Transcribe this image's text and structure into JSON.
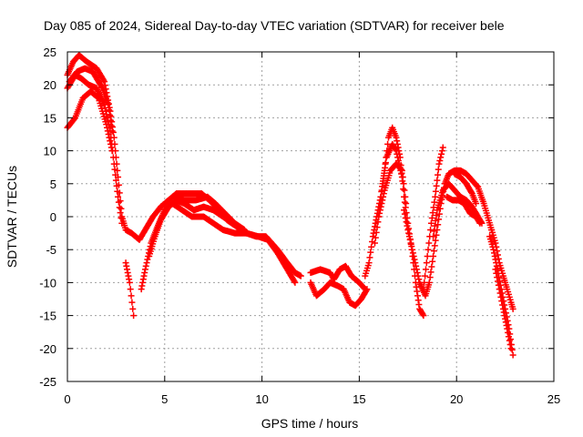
{
  "chart_data": {
    "type": "scatter",
    "title": "Day 085 of 2024, Sidereal Day-to-day VTEC variation (SDTVAR) for receiver bele",
    "xlabel": "GPS time / hours",
    "ylabel": "SDTVAR / TECUs",
    "xlim": [
      0,
      25
    ],
    "ylim": [
      -25,
      25
    ],
    "xticks": [
      0,
      5,
      10,
      15,
      20,
      25
    ],
    "yticks": [
      -25,
      -20,
      -15,
      -10,
      -5,
      0,
      5,
      10,
      15,
      20,
      25
    ],
    "grid": true,
    "marker": "+",
    "series": [
      {
        "name": "SDTVAR",
        "color": "#ff0000",
        "tracks": [
          [
            [
              0.0,
              21.5
            ],
            [
              0.3,
              23.5
            ],
            [
              0.6,
              24.5
            ],
            [
              1.0,
              23.5
            ],
            [
              1.5,
              22.5
            ],
            [
              1.9,
              20.5
            ],
            [
              2.2,
              16
            ],
            [
              2.4,
              12
            ],
            [
              2.6,
              6
            ],
            [
              2.8,
              0
            ],
            [
              3.0,
              -2
            ],
            [
              3.3,
              -2.5
            ],
            [
              3.7,
              -3.5
            ],
            [
              4.0,
              -2
            ],
            [
              4.4,
              0
            ],
            [
              4.8,
              1.5
            ],
            [
              5.2,
              2.5
            ],
            [
              5.6,
              3.5
            ],
            [
              6.0,
              3.5
            ],
            [
              6.4,
              3.5
            ],
            [
              6.9,
              3.5
            ],
            [
              7.3,
              2.5
            ],
            [
              7.8,
              1
            ],
            [
              8.2,
              -0.5
            ],
            [
              8.7,
              -1.5
            ],
            [
              9.2,
              -2.5
            ],
            [
              9.7,
              -3
            ],
            [
              10.2,
              -3
            ],
            [
              10.8,
              -5
            ],
            [
              11.3,
              -7
            ],
            [
              11.7,
              -8.5
            ],
            [
              12.0,
              -9
            ]
          ],
          [
            [
              0.0,
              19.5
            ],
            [
              0.4,
              21.5
            ],
            [
              0.7,
              21
            ],
            [
              1.1,
              20
            ],
            [
              1.5,
              19.5
            ],
            [
              1.9,
              17
            ],
            [
              2.2,
              13
            ],
            [
              2.4,
              8
            ],
            [
              2.6,
              3
            ],
            [
              2.8,
              -1
            ]
          ],
          [
            [
              0.0,
              13.5
            ],
            [
              0.4,
              15
            ],
            [
              0.8,
              18
            ],
            [
              1.2,
              19
            ],
            [
              1.6,
              18
            ],
            [
              2.0,
              14
            ],
            [
              2.3,
              10
            ]
          ],
          [
            [
              0.1,
              20.5
            ],
            [
              0.5,
              22
            ],
            [
              0.9,
              22.5
            ],
            [
              1.3,
              22
            ],
            [
              1.8,
              19.5
            ],
            [
              2.1,
              17
            ],
            [
              2.3,
              13
            ]
          ],
          [
            [
              3.0,
              -7
            ],
            [
              3.2,
              -10
            ],
            [
              3.4,
              -15
            ]
          ],
          [
            [
              3.8,
              -11
            ],
            [
              4.0,
              -8
            ],
            [
              4.3,
              -4
            ],
            [
              4.7,
              -1
            ],
            [
              5.0,
              1
            ],
            [
              5.4,
              2
            ],
            [
              5.9,
              1
            ],
            [
              6.4,
              0
            ],
            [
              7.0,
              0
            ],
            [
              7.5,
              -1
            ],
            [
              8.0,
              -2
            ],
            [
              8.6,
              -2.5
            ],
            [
              9.2,
              -2.5
            ],
            [
              9.8,
              -3
            ],
            [
              10.3,
              -3.5
            ],
            [
              10.8,
              -5.5
            ],
            [
              11.3,
              -8
            ],
            [
              11.7,
              -10
            ]
          ],
          [
            [
              4.2,
              -6
            ],
            [
              4.5,
              -3
            ],
            [
              4.8,
              -0.5
            ],
            [
              5.2,
              1.5
            ],
            [
              5.6,
              2.5
            ],
            [
              6.0,
              2
            ],
            [
              6.5,
              1
            ],
            [
              7.0,
              1.5
            ],
            [
              7.5,
              1
            ],
            [
              8.0,
              0
            ],
            [
              8.5,
              -1
            ],
            [
              9.0,
              -2
            ]
          ],
          [
            [
              5.5,
              3
            ],
            [
              6.0,
              2.5
            ],
            [
              6.6,
              2.5
            ],
            [
              7.2,
              3
            ],
            [
              7.6,
              2
            ],
            [
              8.1,
              0.5
            ],
            [
              8.6,
              -1
            ],
            [
              9.1,
              -2
            ]
          ],
          [
            [
              12.5,
              -8.5
            ],
            [
              13.0,
              -8
            ],
            [
              13.5,
              -8.5
            ],
            [
              13.7,
              -9.5
            ],
            [
              14.0,
              -8
            ],
            [
              14.3,
              -7.5
            ],
            [
              14.6,
              -9
            ],
            [
              15.0,
              -10
            ],
            [
              15.3,
              -11
            ]
          ],
          [
            [
              12.5,
              -10
            ],
            [
              12.8,
              -12
            ],
            [
              13.2,
              -11
            ],
            [
              13.5,
              -10
            ],
            [
              13.9,
              -10.5
            ],
            [
              14.2,
              -11
            ],
            [
              14.5,
              -13
            ],
            [
              14.8,
              -13.5
            ],
            [
              15.1,
              -12.5
            ],
            [
              15.4,
              -11
            ]
          ],
          [
            [
              15.3,
              -9
            ],
            [
              15.5,
              -7
            ],
            [
              15.7,
              -3
            ],
            [
              15.9,
              0
            ],
            [
              16.1,
              3
            ],
            [
              16.3,
              7
            ],
            [
              16.5,
              12
            ],
            [
              16.7,
              13.5
            ],
            [
              16.9,
              12
            ],
            [
              17.1,
              9
            ],
            [
              17.3,
              3
            ],
            [
              17.5,
              -1
            ],
            [
              17.7,
              -5
            ],
            [
              17.9,
              -10
            ],
            [
              18.1,
              -14
            ],
            [
              18.3,
              -15
            ]
          ],
          [
            [
              15.8,
              -4
            ],
            [
              16.0,
              0
            ],
            [
              16.2,
              5
            ],
            [
              16.4,
              9
            ],
            [
              16.7,
              11
            ],
            [
              16.9,
              10
            ],
            [
              17.2,
              6
            ]
          ],
          [
            [
              16.0,
              0
            ],
            [
              16.3,
              4
            ],
            [
              16.6,
              7
            ],
            [
              16.9,
              8
            ],
            [
              17.2,
              7
            ],
            [
              17.4,
              2
            ]
          ],
          [
            [
              17.3,
              1
            ],
            [
              17.5,
              -2
            ],
            [
              17.8,
              -6
            ],
            [
              18.1,
              -10
            ],
            [
              18.4,
              -12
            ],
            [
              18.6,
              -10
            ],
            [
              18.8,
              -6
            ],
            [
              19.0,
              -2
            ],
            [
              19.2,
              2
            ],
            [
              19.4,
              5
            ],
            [
              19.6,
              6.5
            ],
            [
              19.9,
              7
            ],
            [
              20.2,
              7
            ],
            [
              20.5,
              6.5
            ],
            [
              20.8,
              5.5
            ],
            [
              21.1,
              4.5
            ],
            [
              21.4,
              2
            ],
            [
              21.8,
              -2
            ]
          ],
          [
            [
              18.3,
              -11
            ],
            [
              18.5,
              -6
            ],
            [
              18.7,
              -1
            ],
            [
              18.9,
              3
            ],
            [
              19.1,
              8
            ],
            [
              19.3,
              10.5
            ]
          ],
          [
            [
              18.8,
              -3
            ],
            [
              19.0,
              1
            ],
            [
              19.3,
              4
            ],
            [
              19.6,
              5
            ],
            [
              19.9,
              4
            ],
            [
              20.2,
              3
            ],
            [
              20.5,
              2.5
            ],
            [
              20.8,
              1.5
            ],
            [
              21.1,
              0
            ],
            [
              21.3,
              -1
            ]
          ],
          [
            [
              19.5,
              3
            ],
            [
              19.8,
              2.5
            ],
            [
              20.1,
              2.5
            ],
            [
              20.4,
              2
            ],
            [
              20.7,
              0.5
            ],
            [
              21.0,
              0
            ],
            [
              21.2,
              -1
            ]
          ],
          [
            [
              19.9,
              6.5
            ],
            [
              20.2,
              6
            ],
            [
              20.5,
              5
            ],
            [
              20.8,
              3.5
            ],
            [
              21.0,
              2
            ]
          ],
          [
            [
              21.7,
              -3
            ],
            [
              21.9,
              -5
            ],
            [
              22.1,
              -8
            ],
            [
              22.3,
              -11
            ],
            [
              22.5,
              -14
            ],
            [
              22.7,
              -17
            ],
            [
              22.9,
              -21
            ]
          ],
          [
            [
              21.8,
              -2
            ],
            [
              22.0,
              -4
            ],
            [
              22.2,
              -7
            ],
            [
              22.4,
              -9
            ],
            [
              22.6,
              -11
            ],
            [
              22.8,
              -13
            ],
            [
              22.9,
              -14
            ]
          ],
          [
            [
              22.0,
              -8
            ],
            [
              22.2,
              -11
            ],
            [
              22.4,
              -14
            ],
            [
              22.6,
              -17
            ],
            [
              22.8,
              -20
            ]
          ]
        ]
      }
    ]
  }
}
